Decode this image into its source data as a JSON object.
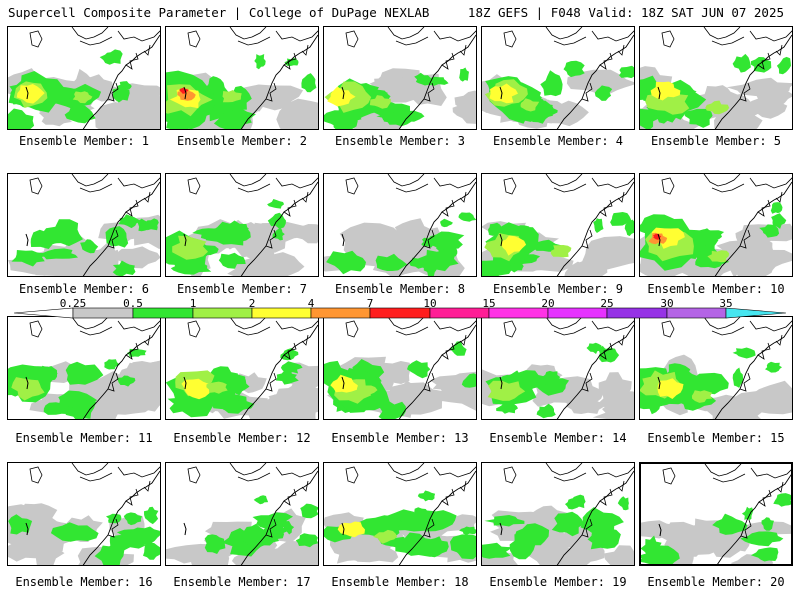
{
  "header": {
    "title_left": "Supercell Composite Parameter | College of DuPage NEXLAB",
    "title_right": "18Z GEFS | F048 Valid: 18Z SAT JUN 07 2025"
  },
  "colorbar": {
    "tick_labels": [
      "0.25",
      "0.5",
      "1",
      "2",
      "4",
      "7",
      "10",
      "15",
      "20",
      "25",
      "30",
      "35"
    ],
    "colors": [
      "#c8c8c8",
      "#32e632",
      "#a0f046",
      "#ffff32",
      "#ff9632",
      "#ff1e1e",
      "#ff1e96",
      "#ff32e6",
      "#e632ff",
      "#9632e6",
      "#b464e6",
      "#46e6f0"
    ],
    "value_bins": [
      [
        0.25,
        0.5
      ],
      [
        0.5,
        1
      ],
      [
        1,
        2
      ],
      [
        2,
        4
      ],
      [
        4,
        7
      ],
      [
        7,
        10
      ],
      [
        10,
        15
      ],
      [
        15,
        20
      ],
      [
        20,
        25
      ],
      [
        25,
        30
      ],
      [
        30,
        35
      ],
      [
        35,
        null
      ]
    ]
  },
  "members": [
    {
      "label": "Ensemble Member: 1"
    },
    {
      "label": "Ensemble Member: 2"
    },
    {
      "label": "Ensemble Member: 3"
    },
    {
      "label": "Ensemble Member: 4"
    },
    {
      "label": "Ensemble Member: 5"
    },
    {
      "label": "Ensemble Member: 6"
    },
    {
      "label": "Ensemble Member: 7"
    },
    {
      "label": "Ensemble Member: 8"
    },
    {
      "label": "Ensemble Member: 9"
    },
    {
      "label": "Ensemble Member: 10"
    },
    {
      "label": "Ensemble Member: 11"
    },
    {
      "label": "Ensemble Member: 12"
    },
    {
      "label": "Ensemble Member: 13"
    },
    {
      "label": "Ensemble Member: 14"
    },
    {
      "label": "Ensemble Member: 15"
    },
    {
      "label": "Ensemble Member: 16"
    },
    {
      "label": "Ensemble Member: 17"
    },
    {
      "label": "Ensemble Member: 18"
    },
    {
      "label": "Ensemble Member: 19"
    },
    {
      "label": "Ensemble Member: 20"
    }
  ]
}
